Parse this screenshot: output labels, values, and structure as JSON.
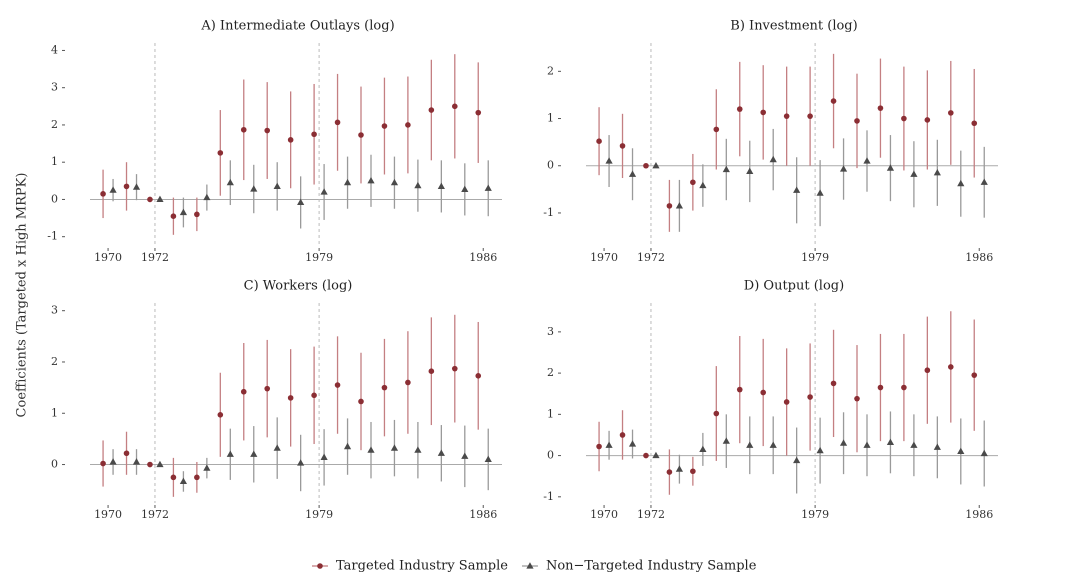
{
  "ylabel": "Coefficients (Targeted x High MRPK)",
  "legend": [
    {
      "name": "Targeted Industry Sample",
      "color": "#8b2e34",
      "bar_color": "#c47f82",
      "marker": "circle"
    },
    {
      "name": "Non−Targeted Industry Sample",
      "color": "#4a4a4a",
      "bar_color": "#9a9a9a",
      "marker": "triangle"
    }
  ],
  "chart_data": [
    {
      "type": "errorbar",
      "title": "A) Intermediate Outlays (log)",
      "x": [
        1970,
        1971,
        1972,
        1973,
        1974,
        1975,
        1976,
        1977,
        1978,
        1979,
        1980,
        1981,
        1982,
        1983,
        1984,
        1985,
        1986
      ],
      "xlim": [
        1969.4,
        1986.8
      ],
      "xticks": [
        1970,
        1972,
        1979,
        1986
      ],
      "vlines": [
        1972,
        1979
      ],
      "ylim": [
        -1.25,
        4.2
      ],
      "yticks": [
        -1,
        0,
        1,
        2,
        3,
        4
      ],
      "series": [
        {
          "values": [
            0.15,
            0.35,
            0,
            -0.45,
            -0.4,
            1.25,
            1.87,
            1.85,
            1.6,
            1.75,
            2.07,
            1.73,
            1.97,
            2.0,
            2.4,
            2.5,
            2.33
          ],
          "errors": [
            0.65,
            0.65,
            0,
            0.5,
            0.45,
            1.15,
            1.35,
            1.3,
            1.3,
            1.35,
            1.3,
            1.3,
            1.3,
            1.3,
            1.35,
            1.4,
            1.35
          ]
        },
        {
          "values": [
            0.25,
            0.33,
            0,
            -0.35,
            0.05,
            0.45,
            0.28,
            0.35,
            -0.08,
            0.2,
            0.45,
            0.5,
            0.45,
            0.37,
            0.35,
            0.27,
            0.3
          ],
          "errors": [
            0.3,
            0.35,
            0,
            0.4,
            0.35,
            0.6,
            0.65,
            0.65,
            0.7,
            0.75,
            0.7,
            0.7,
            0.7,
            0.7,
            0.7,
            0.7,
            0.75
          ]
        }
      ]
    },
    {
      "type": "errorbar",
      "title": "B) Investment (log)",
      "x": [
        1970,
        1971,
        1972,
        1973,
        1974,
        1975,
        1976,
        1977,
        1978,
        1979,
        1980,
        1981,
        1982,
        1983,
        1984,
        1985,
        1986
      ],
      "xlim": [
        1969.4,
        1986.8
      ],
      "xticks": [
        1970,
        1972,
        1979,
        1986
      ],
      "vlines": [
        1972,
        1979
      ],
      "ylim": [
        -1.7,
        2.6
      ],
      "yticks": [
        -1,
        0,
        1,
        2
      ],
      "series": [
        {
          "values": [
            0.52,
            0.42,
            0,
            -0.85,
            -0.35,
            0.77,
            1.2,
            1.13,
            1.05,
            1.05,
            1.37,
            0.95,
            1.22,
            1.0,
            0.97,
            1.12,
            0.9
          ],
          "errors": [
            0.72,
            0.68,
            0,
            0.55,
            0.6,
            0.85,
            1.0,
            1.0,
            1.05,
            1.05,
            1.0,
            1.0,
            1.05,
            1.1,
            1.05,
            1.1,
            1.15
          ]
        },
        {
          "values": [
            0.1,
            -0.18,
            0,
            -0.85,
            -0.42,
            -0.08,
            -0.12,
            0.13,
            -0.52,
            -0.58,
            -0.07,
            0.1,
            -0.05,
            -0.18,
            -0.15,
            -0.38,
            -0.35
          ],
          "errors": [
            0.55,
            0.55,
            0,
            0.55,
            0.45,
            0.65,
            0.65,
            0.65,
            0.7,
            0.7,
            0.65,
            0.65,
            0.7,
            0.7,
            0.7,
            0.7,
            0.75
          ]
        }
      ]
    },
    {
      "type": "errorbar",
      "title": "C) Workers (log)",
      "x": [
        1970,
        1971,
        1972,
        1973,
        1974,
        1975,
        1976,
        1977,
        1978,
        1979,
        1980,
        1981,
        1982,
        1983,
        1984,
        1985,
        1986
      ],
      "xlim": [
        1969.4,
        1986.8
      ],
      "xticks": [
        1970,
        1972,
        1979,
        1986
      ],
      "vlines": [
        1972,
        1979
      ],
      "ylim": [
        -0.75,
        3.15
      ],
      "yticks": [
        0,
        1,
        2,
        3
      ],
      "series": [
        {
          "values": [
            0.02,
            0.22,
            0,
            -0.25,
            -0.25,
            0.97,
            1.42,
            1.48,
            1.3,
            1.35,
            1.55,
            1.23,
            1.5,
            1.6,
            1.82,
            1.87,
            1.73
          ],
          "errors": [
            0.45,
            0.42,
            0,
            0.38,
            0.3,
            0.82,
            0.95,
            0.95,
            0.95,
            0.95,
            0.95,
            0.95,
            0.95,
            1.0,
            1.05,
            1.05,
            1.05
          ]
        },
        {
          "values": [
            0.05,
            0.05,
            0,
            -0.33,
            -0.07,
            0.2,
            0.2,
            0.32,
            0.03,
            0.14,
            0.35,
            0.28,
            0.32,
            0.28,
            0.22,
            0.16,
            0.1
          ],
          "errors": [
            0.25,
            0.25,
            0,
            0.2,
            0.2,
            0.5,
            0.55,
            0.6,
            0.55,
            0.55,
            0.55,
            0.55,
            0.55,
            0.55,
            0.55,
            0.6,
            0.6
          ]
        }
      ]
    },
    {
      "type": "errorbar",
      "title": "D) Output (log)",
      "x": [
        1970,
        1971,
        1972,
        1973,
        1974,
        1975,
        1976,
        1977,
        1978,
        1979,
        1980,
        1981,
        1982,
        1983,
        1984,
        1985,
        1986
      ],
      "xlim": [
        1969.4,
        1986.8
      ],
      "xticks": [
        1970,
        1972,
        1979,
        1986
      ],
      "vlines": [
        1972,
        1979
      ],
      "ylim": [
        -1.15,
        3.7
      ],
      "yticks": [
        -1,
        0,
        1,
        2,
        3
      ],
      "series": [
        {
          "values": [
            0.22,
            0.5,
            0,
            -0.4,
            -0.38,
            1.02,
            1.6,
            1.53,
            1.3,
            1.42,
            1.75,
            1.38,
            1.65,
            1.65,
            2.07,
            2.15,
            1.95
          ],
          "errors": [
            0.6,
            0.6,
            0,
            0.55,
            0.35,
            1.15,
            1.3,
            1.3,
            1.3,
            1.3,
            1.3,
            1.3,
            1.3,
            1.3,
            1.3,
            1.35,
            1.35
          ]
        },
        {
          "values": [
            0.25,
            0.28,
            0,
            -0.33,
            0.15,
            0.35,
            0.25,
            0.25,
            -0.12,
            0.12,
            0.3,
            0.25,
            0.32,
            0.25,
            0.2,
            0.1,
            0.05
          ],
          "errors": [
            0.35,
            0.35,
            0,
            0.35,
            0.4,
            0.65,
            0.7,
            0.7,
            0.8,
            0.8,
            0.75,
            0.75,
            0.75,
            0.75,
            0.75,
            0.8,
            0.8
          ]
        }
      ]
    }
  ]
}
